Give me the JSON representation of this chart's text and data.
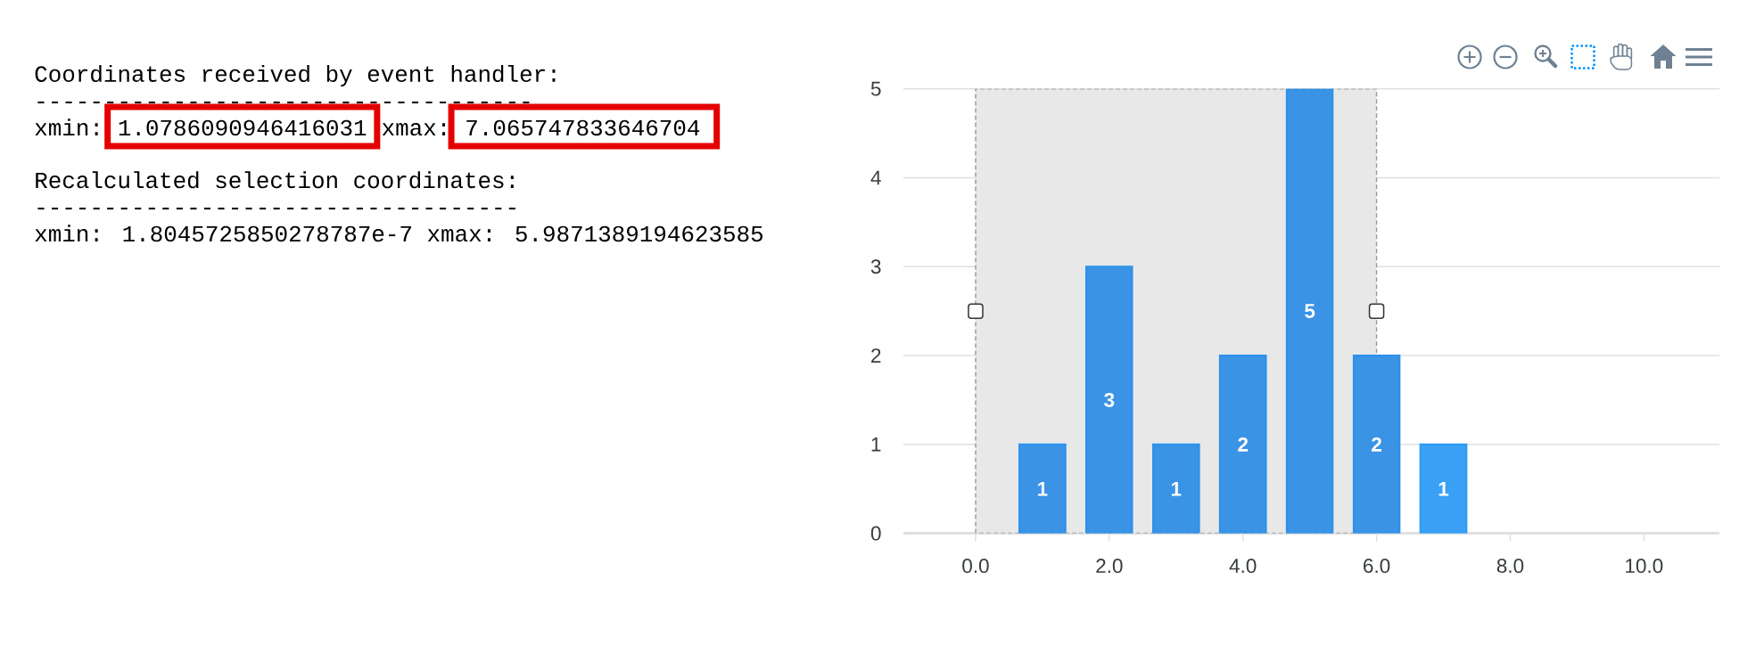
{
  "chart_data": [
    {
      "type": "other",
      "annotations": [
        "Coordinates received by event handler:",
        "------------------------------------",
        "xmin:",
        "1.0786090946416031",
        "xmax:",
        "7.065747833646704",
        "Recalculated selection coordinates:",
        "-----------------------------------",
        "xmin: 1.8045725850278787e-7 xmax: 5.9871389194623585"
      ]
    },
    {
      "type": "bar",
      "x": [
        1,
        2,
        3,
        4,
        5,
        6,
        7
      ],
      "values": [
        1,
        3,
        1,
        2,
        5,
        2,
        1
      ],
      "colors": [
        "#3a93e5",
        "#3a93e5",
        "#3a93e5",
        "#3a93e5",
        "#3a93e5",
        "#3a93e5",
        "#3aa0f5"
      ],
      "xlim": [
        -1.08,
        11.13
      ],
      "xticks": [
        {
          "value": 0,
          "label": "0.0"
        },
        {
          "value": 2,
          "label": "2.0"
        },
        {
          "value": 4,
          "label": "4.0"
        },
        {
          "value": 6,
          "label": "6.0"
        },
        {
          "value": 8,
          "label": "8.0"
        },
        {
          "value": 10,
          "label": "10.0"
        }
      ],
      "ylim": [
        0,
        5
      ],
      "yticks": [
        0,
        1,
        2,
        3,
        4,
        5
      ],
      "grid": "y",
      "data_labels": true,
      "bands": [
        {
          "axis": "x",
          "from": 0,
          "to": 6,
          "color": "#e8e8e8"
        }
      ]
    }
  ]
}
